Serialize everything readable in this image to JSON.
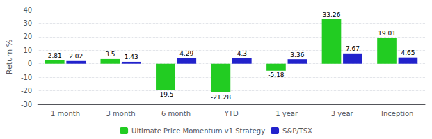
{
  "chart_data": {
    "type": "bar",
    "categories": [
      "1 month",
      "3 month",
      "6 month",
      "YTD",
      "1 year",
      "3 year",
      "Inception"
    ],
    "series": [
      {
        "name": "Ultimate Price Momentum v1 Strategy",
        "color": "#22CC22",
        "values": [
          2.81,
          3.5,
          -19.5,
          -21.28,
          -5.18,
          33.26,
          19.01
        ]
      },
      {
        "name": "S&P/TSX",
        "color": "#2222CC",
        "values": [
          2.02,
          1.43,
          4.29,
          4.3,
          3.36,
          7.67,
          4.65
        ]
      }
    ],
    "ylabel": "Return %",
    "ylim": [
      -30,
      40
    ],
    "yticks": [
      -30,
      -20,
      -10,
      0,
      10,
      20,
      30,
      40
    ],
    "grid": true,
    "legend": "bottom",
    "data_labels": true
  }
}
